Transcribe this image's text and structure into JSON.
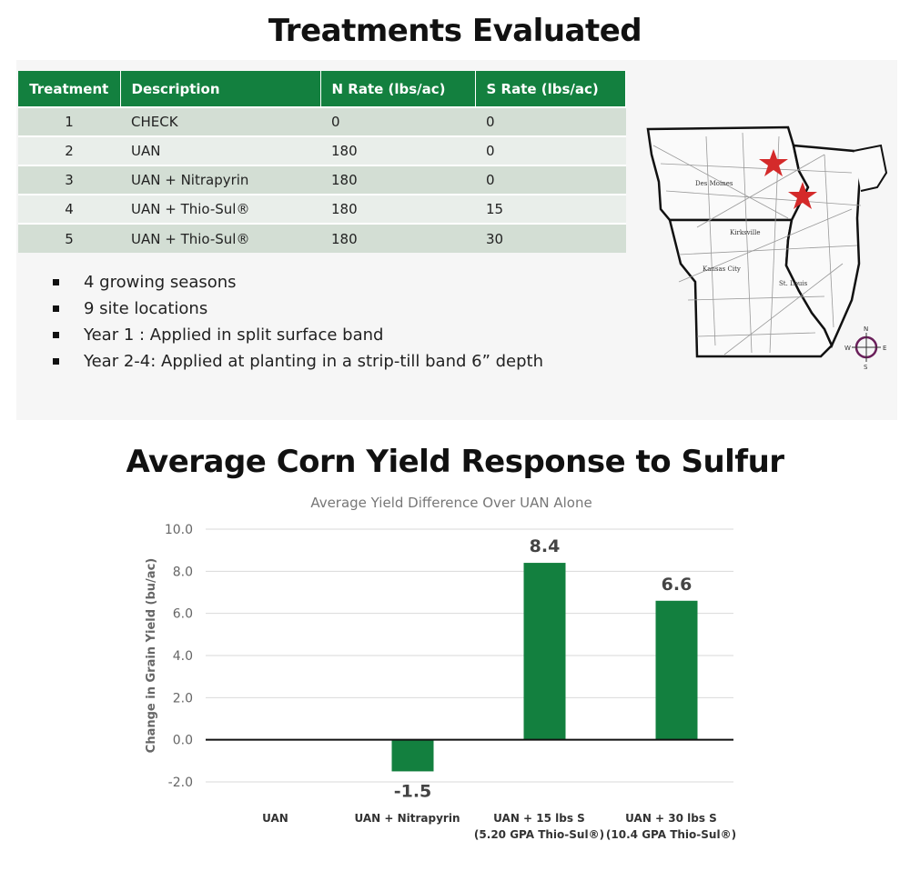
{
  "headings": {
    "treatments": "Treatments Evaluated",
    "yield": "Average Corn Yield Response to Sulfur"
  },
  "table": {
    "headers": [
      "Treatment",
      "Description",
      "N Rate (lbs/ac)",
      "S Rate (lbs/ac)"
    ],
    "rows": [
      [
        "1",
        "CHECK",
        "0",
        "0"
      ],
      [
        "2",
        "UAN",
        "180",
        "0"
      ],
      [
        "3",
        "UAN + Nitrapyrin",
        "180",
        "0"
      ],
      [
        "4",
        "UAN + Thio-Sul®",
        "180",
        "15"
      ],
      [
        "5",
        "UAN + Thio-Sul®",
        "180",
        "30"
      ]
    ],
    "header_color": "#13803f"
  },
  "bullets": [
    "4 growing seasons",
    "9 site locations",
    "Year 1 : Applied in split surface band",
    "Year 2-4: Applied at planting in a strip-till band 6” depth"
  ],
  "map": {
    "labels": [
      "Des Moines",
      "Kirksville",
      "Kansas City",
      "St. Louis"
    ],
    "compass": [
      "N",
      "E",
      "S",
      "W"
    ],
    "marker_color": "#d42a2a",
    "marker_count": 2
  },
  "chart_data": {
    "type": "bar",
    "title": "Average Yield Difference Over UAN Alone",
    "ylabel": "Change in Grain Yield (bu/ac)",
    "xlabel": "",
    "categories": [
      [
        "UAN"
      ],
      [
        "UAN + Nitrapyrin"
      ],
      [
        "UAN + 15 lbs S",
        "(5.20 GPA Thio-Sul®)"
      ],
      [
        "UAN + 30 lbs S",
        "(10.4 GPA Thio-Sul®)"
      ]
    ],
    "values": [
      0,
      -1.5,
      8.4,
      6.6
    ],
    "data_labels": [
      "",
      "-1.5",
      "8.4",
      "6.6"
    ],
    "ylim": [
      -2,
      10
    ],
    "yticks": [
      "-2.0",
      "0.0",
      "2.0",
      "4.0",
      "6.0",
      "8.0",
      "10.0"
    ],
    "grid": true,
    "bar_color": "#13803f"
  }
}
